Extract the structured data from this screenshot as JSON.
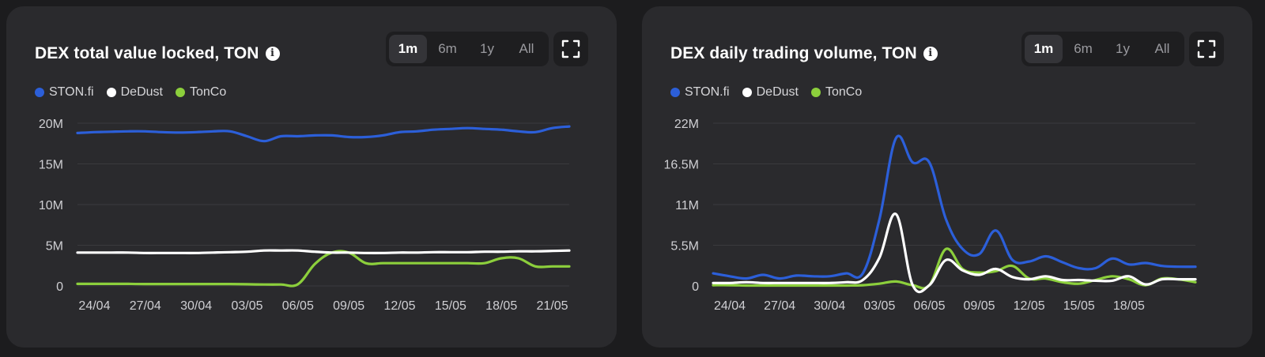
{
  "colors": {
    "ston_fi": "#2c5fd9",
    "dedust": "#ffffff",
    "tonco": "#8ccf3c",
    "grid": "#3a3a3e",
    "card_bg": "#2a2a2d"
  },
  "icons": {
    "info": "info-icon",
    "fullscreen": "fullscreen-icon"
  },
  "info_glyph": "i",
  "cards": [
    {
      "title": "DEX total value locked, TON",
      "periods": [
        "1m",
        "6m",
        "1y",
        "All"
      ],
      "active_period": "1m",
      "legend": [
        "STON.fi",
        "DeDust",
        "TonCo"
      ]
    },
    {
      "title": "DEX daily trading volume, TON",
      "periods": [
        "1m",
        "6m",
        "1y",
        "All"
      ],
      "active_period": "1m",
      "legend": [
        "STON.fi",
        "DeDust",
        "TonCo"
      ]
    }
  ],
  "chart_data": [
    {
      "type": "line",
      "title": "DEX total value locked, TON",
      "x_tick_labels": [
        "24/04",
        "27/04",
        "30/04",
        "03/05",
        "06/05",
        "09/05",
        "12/05",
        "15/05",
        "18/05",
        "21/05"
      ],
      "x_tick_days": [
        1,
        4,
        7,
        10,
        13,
        16,
        19,
        22,
        25,
        28
      ],
      "x_range_days": [
        0,
        29
      ],
      "y_tick_labels": [
        "0",
        "5M",
        "10M",
        "15M",
        "20M"
      ],
      "y_ticks": [
        0,
        5000000,
        10000000,
        15000000,
        20000000
      ],
      "ylim": [
        0,
        20000000
      ],
      "grid": true,
      "legend_position": "top-left",
      "series": [
        {
          "name": "STON.fi",
          "x": [
            0,
            1,
            2,
            3,
            4,
            5,
            6,
            7,
            8,
            9,
            10,
            11,
            12,
            13,
            14,
            15,
            16,
            17,
            18,
            19,
            20,
            21,
            22,
            23,
            24,
            25,
            26,
            27,
            28,
            29
          ],
          "values": [
            18800000,
            18900000,
            18950000,
            19000000,
            19000000,
            18900000,
            18850000,
            18900000,
            19000000,
            19000000,
            18400000,
            17800000,
            18400000,
            18400000,
            18500000,
            18500000,
            18300000,
            18300000,
            18500000,
            18900000,
            19000000,
            19200000,
            19300000,
            19400000,
            19300000,
            19200000,
            19000000,
            18900000,
            19400000,
            19600000
          ]
        },
        {
          "name": "DeDust",
          "x": [
            0,
            1,
            2,
            3,
            4,
            5,
            6,
            7,
            8,
            9,
            10,
            11,
            12,
            13,
            14,
            15,
            16,
            17,
            18,
            19,
            20,
            21,
            22,
            23,
            24,
            25,
            26,
            27,
            28,
            29
          ],
          "values": [
            4100000,
            4100000,
            4100000,
            4100000,
            4050000,
            4050000,
            4050000,
            4050000,
            4100000,
            4150000,
            4200000,
            4350000,
            4350000,
            4350000,
            4200000,
            4100000,
            4100000,
            4050000,
            4050000,
            4100000,
            4100000,
            4150000,
            4150000,
            4150000,
            4200000,
            4200000,
            4250000,
            4250000,
            4300000,
            4350000
          ]
        },
        {
          "name": "TonCo",
          "x": [
            0,
            1,
            2,
            3,
            4,
            5,
            6,
            7,
            8,
            9,
            10,
            11,
            12,
            13,
            14,
            15,
            16,
            17,
            18,
            19,
            20,
            21,
            22,
            23,
            24,
            25,
            26,
            27,
            28,
            29
          ],
          "values": [
            250000,
            250000,
            250000,
            250000,
            230000,
            230000,
            230000,
            230000,
            230000,
            230000,
            200000,
            170000,
            170000,
            200000,
            2700000,
            4100000,
            4100000,
            2800000,
            2800000,
            2800000,
            2800000,
            2800000,
            2800000,
            2800000,
            2800000,
            3400000,
            3400000,
            2400000,
            2400000,
            2400000
          ]
        }
      ]
    },
    {
      "type": "line",
      "title": "DEX daily trading volume, TON",
      "x_tick_labels": [
        "24/04",
        "27/04",
        "30/04",
        "03/05",
        "06/05",
        "09/05",
        "12/05",
        "15/05",
        "18/05"
      ],
      "x_tick_days": [
        1,
        4,
        7,
        10,
        13,
        16,
        19,
        22,
        25
      ],
      "x_range_days": [
        0,
        29
      ],
      "y_tick_labels": [
        "0",
        "5.5M",
        "11M",
        "16.5M",
        "22M"
      ],
      "y_ticks": [
        0,
        5500000,
        11000000,
        16500000,
        22000000
      ],
      "ylim": [
        0,
        22000000
      ],
      "grid": true,
      "legend_position": "top-left",
      "series": [
        {
          "name": "STON.fi",
          "x": [
            0,
            1,
            2,
            3,
            4,
            5,
            6,
            7,
            8,
            9,
            10,
            11,
            12,
            13,
            14,
            15,
            16,
            17,
            18,
            19,
            20,
            21,
            22,
            23,
            24,
            25,
            26,
            27,
            28,
            29
          ],
          "values": [
            1700000,
            1300000,
            1000000,
            1500000,
            1000000,
            1400000,
            1300000,
            1300000,
            1700000,
            1700000,
            9000000,
            20000000,
            16700000,
            16700000,
            9000000,
            5000000,
            4300000,
            7500000,
            3500000,
            3300000,
            4000000,
            3200000,
            2400000,
            2400000,
            3700000,
            2900000,
            3100000,
            2700000,
            2600000,
            2600000
          ]
        },
        {
          "name": "DeDust",
          "x": [
            0,
            1,
            2,
            3,
            4,
            5,
            6,
            7,
            8,
            9,
            10,
            11,
            12,
            13,
            14,
            15,
            16,
            17,
            18,
            19,
            20,
            21,
            22,
            23,
            24,
            25,
            26,
            27,
            28,
            29
          ],
          "values": [
            400000,
            400000,
            500000,
            400000,
            400000,
            400000,
            400000,
            400000,
            500000,
            800000,
            3800000,
            9700000,
            100000,
            100000,
            3500000,
            2100000,
            1500000,
            2300000,
            1200000,
            900000,
            1300000,
            800000,
            800000,
            700000,
            700000,
            1300000,
            200000,
            900000,
            900000,
            900000
          ]
        },
        {
          "name": "TonCo",
          "x": [
            0,
            1,
            2,
            3,
            4,
            5,
            6,
            7,
            8,
            9,
            10,
            11,
            12,
            13,
            14,
            15,
            16,
            17,
            18,
            19,
            20,
            21,
            22,
            23,
            24,
            25,
            26,
            27,
            28,
            29
          ],
          "values": [
            100000,
            100000,
            50000,
            50000,
            50000,
            50000,
            50000,
            50000,
            50000,
            100000,
            300000,
            600000,
            100000,
            100000,
            5000000,
            2300000,
            1800000,
            2000000,
            2700000,
            1000000,
            1000000,
            500000,
            300000,
            800000,
            1300000,
            900000,
            100000,
            1000000,
            900000,
            500000
          ]
        }
      ]
    }
  ]
}
